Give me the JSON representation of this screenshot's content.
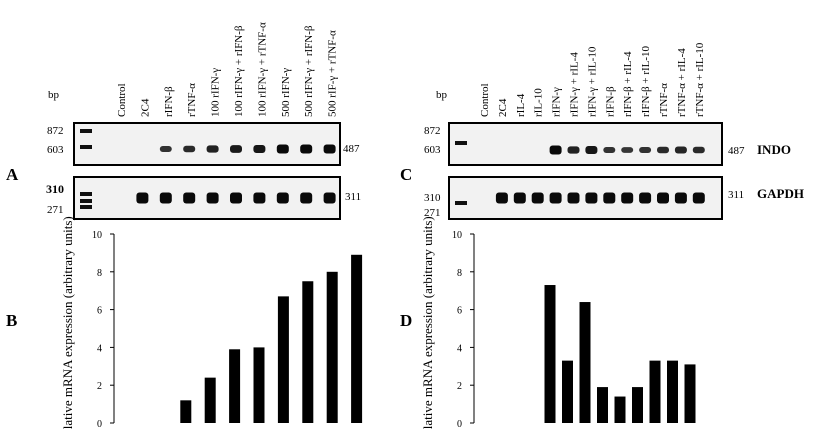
{
  "panel_letters": {
    "a": "A",
    "b": "B",
    "c": "C",
    "d": "D"
  },
  "left": {
    "bp_heading": "bp",
    "lanes": [
      "Control",
      "2C4",
      "rIFN-β",
      "rTNF-α",
      "100 rIFN-γ",
      "100 rIFN-γ + rIFN-β",
      "100 rIFN-γ + rTNF-α",
      "500 rIFN-γ",
      "500 rIFN-γ + rIFN-β",
      "500 rIF-γ + rTNF-α"
    ],
    "top_markers": [
      "872",
      "603"
    ],
    "top_size": "487",
    "bottom_markers": [
      "310",
      "271"
    ],
    "bottom_size": "311",
    "indo_bands": [
      0,
      0,
      0.5,
      0.6,
      0.7,
      0.8,
      0.85,
      1.0,
      1.0,
      1.0
    ],
    "gapdh_bands": [
      0,
      1,
      1,
      1,
      1,
      1,
      1,
      1,
      1,
      1
    ]
  },
  "right": {
    "bp_heading": "bp",
    "lanes": [
      "Control",
      "2C4",
      "rIL-4",
      "rIL-10",
      "rIFN-γ",
      "rIFN-γ + rIL-4",
      "rIFN-γ + rIL-10",
      "rIFN-β",
      "rIFN-β + rIL-4",
      "rIFN-β + rIL-10",
      "rTNF-α",
      "rTNF-α + rIL-4",
      "rTNF-α + rIL-10"
    ],
    "top_markers": [
      "872",
      "603"
    ],
    "top_size": "487",
    "gene_top": "INDO",
    "bottom_markers": [
      "310",
      "271"
    ],
    "bottom_size": "311",
    "gene_bottom": "GAPDH",
    "indo_bands": [
      0,
      0,
      0,
      0,
      1.0,
      0.7,
      0.85,
      0.5,
      0.45,
      0.5,
      0.6,
      0.65,
      0.6
    ],
    "gapdh_bands": [
      0,
      1,
      1,
      1,
      1,
      1,
      1,
      1,
      1,
      1,
      1,
      1,
      1
    ]
  },
  "chart_data": [
    {
      "type": "bar",
      "panel": "B",
      "ylabel": "Relative mRNA expression (arbitrary units)",
      "ylim": [
        0,
        10
      ],
      "yticks": [
        "0",
        "2",
        "4",
        "6",
        "8",
        "10"
      ],
      "values": [
        0,
        0,
        1.2,
        2.4,
        3.9,
        4.0,
        6.7,
        7.5,
        8.0,
        8.9
      ]
    },
    {
      "type": "bar",
      "panel": "D",
      "ylabel": "Relative mRNA expression (arbitrary units)",
      "ylim": [
        0,
        10
      ],
      "yticks": [
        "0",
        "2",
        "4",
        "6",
        "8",
        "10"
      ],
      "values": [
        0,
        0,
        0,
        0,
        7.3,
        3.3,
        6.4,
        1.9,
        1.4,
        1.9,
        3.3,
        3.3,
        3.1
      ]
    }
  ]
}
